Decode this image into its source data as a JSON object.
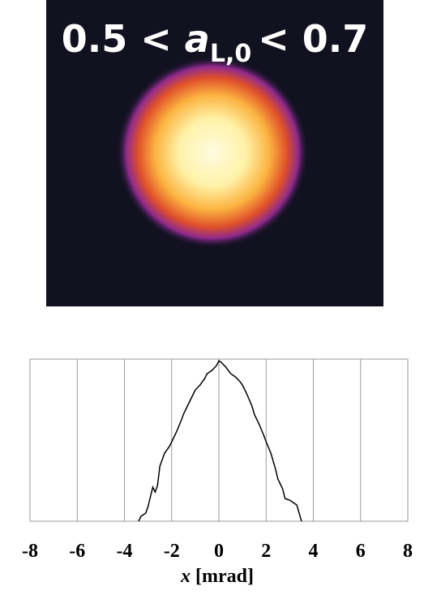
{
  "chart_data": [
    {
      "type": "image",
      "title": {
        "prefix": "0.5 <",
        "symbol": "a",
        "subscript": "L,0",
        "suffix": "< 0.7"
      }
    },
    {
      "type": "line",
      "xlabel": {
        "symbol": "x",
        "unit": "[mrad]"
      },
      "x": [
        -3.4,
        -3.3,
        -3.1,
        -3.0,
        -2.9,
        -2.8,
        -2.7,
        -2.6,
        -2.5,
        -2.3,
        -2.1,
        -2.0,
        -1.8,
        -1.6,
        -1.5,
        -1.3,
        -1.1,
        -1.0,
        -0.8,
        -0.6,
        -0.5,
        -0.3,
        -0.1,
        0.0,
        0.1,
        0.3,
        0.5,
        0.7,
        0.9,
        1.0,
        1.2,
        1.4,
        1.5,
        1.7,
        1.9,
        2.0,
        2.2,
        2.4,
        2.5,
        2.7,
        2.8,
        3.0,
        3.2,
        3.3,
        3.4,
        3.5
      ],
      "values": [
        0.0,
        0.03,
        0.05,
        0.09,
        0.15,
        0.21,
        0.18,
        0.22,
        0.34,
        0.42,
        0.46,
        0.49,
        0.55,
        0.62,
        0.66,
        0.72,
        0.78,
        0.81,
        0.84,
        0.88,
        0.91,
        0.93,
        0.96,
        0.99,
        0.98,
        0.95,
        0.91,
        0.89,
        0.86,
        0.84,
        0.78,
        0.71,
        0.66,
        0.6,
        0.53,
        0.49,
        0.42,
        0.32,
        0.26,
        0.2,
        0.14,
        0.13,
        0.11,
        0.1,
        0.05,
        0.0
      ],
      "color": "#000000",
      "xlim": [
        -8,
        8
      ],
      "xticks": [
        -8,
        -6,
        -4,
        -2,
        0,
        2,
        4,
        6,
        8
      ],
      "ylim": [
        0,
        1
      ],
      "grid": true
    }
  ]
}
